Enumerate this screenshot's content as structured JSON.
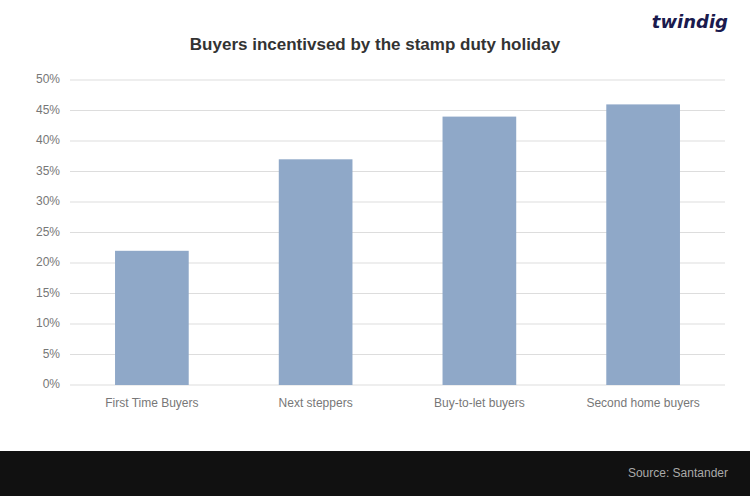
{
  "chart_data": {
    "type": "bar",
    "title": "Buyers incentivsed by the stamp duty holiday",
    "categories": [
      "First Time Buyers",
      "Next steppers",
      "Buy-to-let buyers",
      "Second home buyers"
    ],
    "values": [
      0.22,
      0.37,
      0.44,
      0.46
    ],
    "color": "#8FA8C8",
    "ylim": [
      0,
      0.5
    ],
    "yticks": [
      {
        "value": 0.0,
        "label": "0%"
      },
      {
        "value": 0.05,
        "label": "5%"
      },
      {
        "value": 0.1,
        "label": "10%"
      },
      {
        "value": 0.15,
        "label": "15%"
      },
      {
        "value": 0.2,
        "label": "20%"
      },
      {
        "value": 0.25,
        "label": "25%"
      },
      {
        "value": 0.3,
        "label": "30%"
      },
      {
        "value": 0.35,
        "label": "35%"
      },
      {
        "value": 0.4,
        "label": "40%"
      },
      {
        "value": 0.45,
        "label": "45%"
      },
      {
        "value": 0.5,
        "label": "50%"
      }
    ],
    "grid": true,
    "annotations": [
      "twindig",
      "Source: Santander"
    ]
  }
}
